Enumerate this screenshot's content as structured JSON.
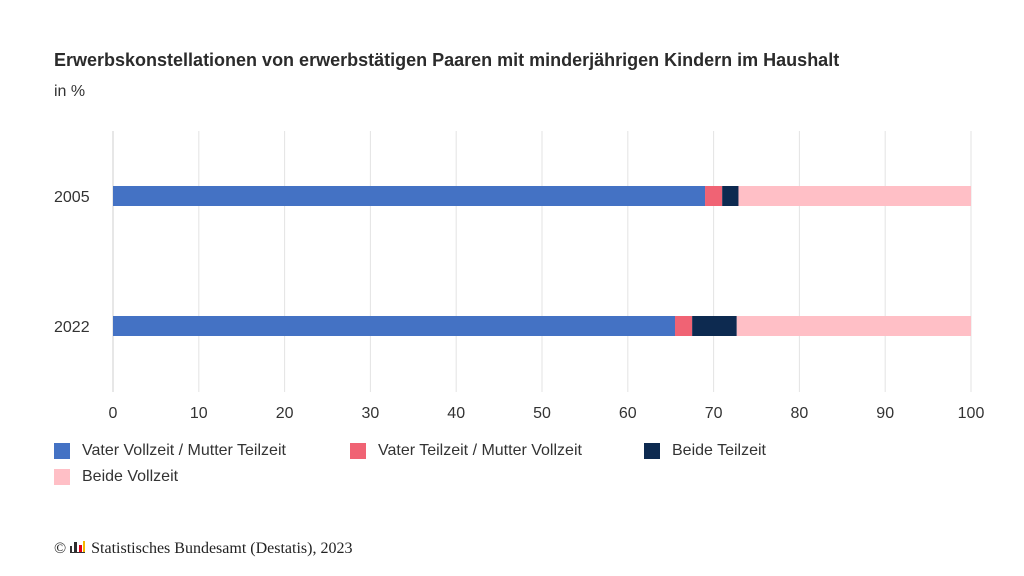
{
  "chart_data": {
    "type": "bar",
    "orientation": "horizontal",
    "stacked": true,
    "title": "Erwerbskonstellationen von erwerbstätigen Paaren mit minderjährigen Kindern im Haushalt",
    "subtitle": "in %",
    "categories": [
      "2005",
      "2022"
    ],
    "series": [
      {
        "name": "Vater Vollzeit / Mutter Teilzeit",
        "color": "#4472c4",
        "values": [
          69.0,
          65.5
        ]
      },
      {
        "name": "Vater Teilzeit / Mutter Vollzeit",
        "color": "#f06374",
        "values": [
          2.0,
          2.0
        ]
      },
      {
        "name": "Beide Teilzeit",
        "color": "#0d2a50",
        "values": [
          1.9,
          5.2
        ]
      },
      {
        "name": "Beide Vollzeit",
        "color": "#ffbfc6",
        "values": [
          27.1,
          27.3
        ]
      }
    ],
    "xlim": [
      0,
      100
    ],
    "xticks": [
      "0",
      "10",
      "20",
      "30",
      "40",
      "50",
      "60",
      "70",
      "80",
      "90",
      "100"
    ],
    "xlabel": "",
    "ylabel": "",
    "grid": true,
    "legend_position": "bottom"
  },
  "footer": {
    "copyright_symbol": "©",
    "source": "Statistisches Bundesamt (Destatis), 2023",
    "logo_icon": "destatis-logo-icon"
  }
}
